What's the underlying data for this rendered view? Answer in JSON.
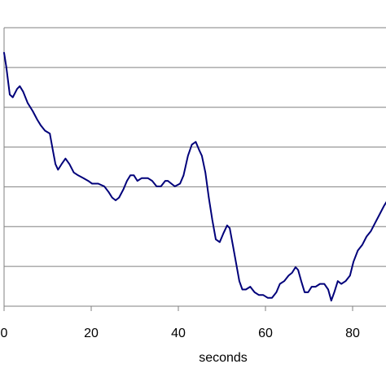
{
  "chart_data": {
    "type": "line",
    "title": "",
    "xlabel": "seconds",
    "ylabel": "",
    "xlim": [
      0,
      88
    ],
    "x_ticks": [
      0,
      20,
      40,
      60,
      80
    ],
    "x_tick_labels": [
      "0",
      "20",
      "40",
      "60",
      "80"
    ],
    "y_gridline_count": 7,
    "grid": "horizontal",
    "line_color": "#00007a",
    "series": [
      {
        "points": [
          [
            0.0,
            0.91
          ],
          [
            0.5,
            0.86
          ],
          [
            1.3,
            0.76
          ],
          [
            2.0,
            0.75
          ],
          [
            3.0,
            0.78
          ],
          [
            3.6,
            0.79
          ],
          [
            4.4,
            0.77
          ],
          [
            5.4,
            0.73
          ],
          [
            6.6,
            0.7
          ],
          [
            7.6,
            0.67
          ],
          [
            8.4,
            0.65
          ],
          [
            9.4,
            0.63
          ],
          [
            10.5,
            0.62
          ],
          [
            11.2,
            0.56
          ],
          [
            11.8,
            0.51
          ],
          [
            12.4,
            0.49
          ],
          [
            13.2,
            0.51
          ],
          [
            14.1,
            0.53
          ],
          [
            15.0,
            0.51
          ],
          [
            16.0,
            0.48
          ],
          [
            17.0,
            0.47
          ],
          [
            18.2,
            0.46
          ],
          [
            19.3,
            0.45
          ],
          [
            20.2,
            0.44
          ],
          [
            21.6,
            0.44
          ],
          [
            23.0,
            0.43
          ],
          [
            24.0,
            0.41
          ],
          [
            24.8,
            0.39
          ],
          [
            25.6,
            0.38
          ],
          [
            26.4,
            0.39
          ],
          [
            27.4,
            0.42
          ],
          [
            28.2,
            0.45
          ],
          [
            29.0,
            0.47
          ],
          [
            29.8,
            0.47
          ],
          [
            30.6,
            0.45
          ],
          [
            31.6,
            0.46
          ],
          [
            33.0,
            0.46
          ],
          [
            34.0,
            0.45
          ],
          [
            35.0,
            0.43
          ],
          [
            36.0,
            0.43
          ],
          [
            37.0,
            0.45
          ],
          [
            37.6,
            0.45
          ],
          [
            38.4,
            0.44
          ],
          [
            39.2,
            0.43
          ],
          [
            40.4,
            0.44
          ],
          [
            41.2,
            0.47
          ],
          [
            42.2,
            0.54
          ],
          [
            43.1,
            0.58
          ],
          [
            44.0,
            0.59
          ],
          [
            44.8,
            0.56
          ],
          [
            45.4,
            0.54
          ],
          [
            46.2,
            0.48
          ],
          [
            47.0,
            0.39
          ],
          [
            47.8,
            0.31
          ],
          [
            48.6,
            0.24
          ],
          [
            49.5,
            0.23
          ],
          [
            50.3,
            0.26
          ],
          [
            51.2,
            0.29
          ],
          [
            51.8,
            0.28
          ],
          [
            52.5,
            0.22
          ],
          [
            53.2,
            0.16
          ],
          [
            54.0,
            0.09
          ],
          [
            54.7,
            0.06
          ],
          [
            55.5,
            0.06
          ],
          [
            56.5,
            0.07
          ],
          [
            57.5,
            0.05
          ],
          [
            58.5,
            0.04
          ],
          [
            59.5,
            0.04
          ],
          [
            60.5,
            0.03
          ],
          [
            61.5,
            0.03
          ],
          [
            62.5,
            0.05
          ],
          [
            63.3,
            0.08
          ],
          [
            64.3,
            0.09
          ],
          [
            65.3,
            0.11
          ],
          [
            66.1,
            0.12
          ],
          [
            66.9,
            0.14
          ],
          [
            67.5,
            0.13
          ],
          [
            68.2,
            0.09
          ],
          [
            69.0,
            0.05
          ],
          [
            69.8,
            0.05
          ],
          [
            70.6,
            0.07
          ],
          [
            71.5,
            0.07
          ],
          [
            72.5,
            0.08
          ],
          [
            73.5,
            0.08
          ],
          [
            74.4,
            0.06
          ],
          [
            75.1,
            0.02
          ],
          [
            75.8,
            0.05
          ],
          [
            76.6,
            0.09
          ],
          [
            77.4,
            0.08
          ],
          [
            78.4,
            0.09
          ],
          [
            79.4,
            0.11
          ],
          [
            80.2,
            0.16
          ],
          [
            81.2,
            0.2
          ],
          [
            82.2,
            0.22
          ],
          [
            83.2,
            0.25
          ],
          [
            84.2,
            0.27
          ],
          [
            85.2,
            0.3
          ],
          [
            86.2,
            0.33
          ],
          [
            87.2,
            0.36
          ],
          [
            88.0,
            0.38
          ]
        ]
      }
    ]
  }
}
